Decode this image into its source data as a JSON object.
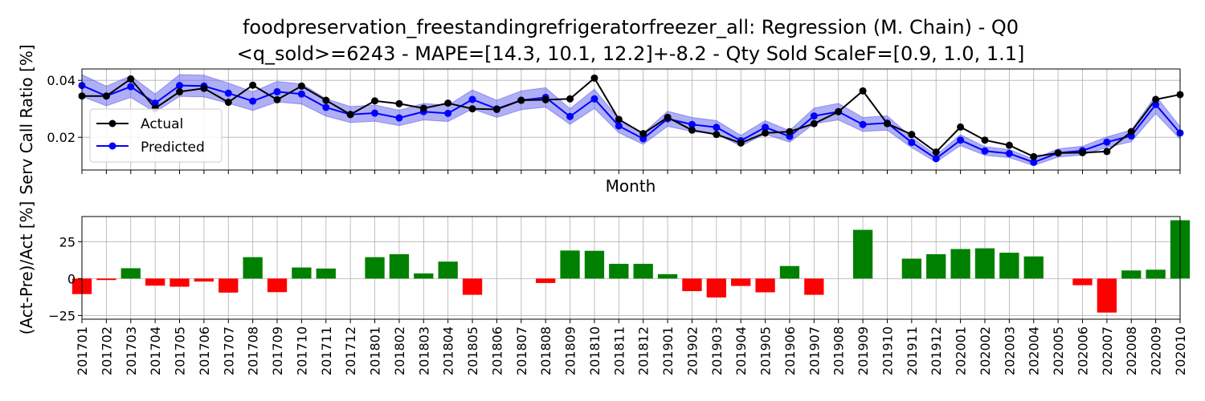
{
  "chart_data": [
    {
      "type": "line",
      "title_line1": "foodpreservation_freestandingrefrigeratorfreezer_all: Regression (M. Chain) - Q0",
      "title_line2": "<q_sold>=6243 - MAPE=[14.3, 10.1, 12.2]+-8.2 - Qty Sold ScaleF=[0.9, 1.0, 1.1]",
      "xlabel": "Month",
      "ylabel": "Serv Call Ratio [%]",
      "ylim": [
        0.0085,
        0.044
      ],
      "yticks": [
        0.02,
        0.04
      ],
      "ytick_labels": [
        "0.02",
        "0.04"
      ],
      "grid": true,
      "legend_placement": "center-left",
      "series": [
        {
          "name": "Actual",
          "color": "#000000",
          "values": [
            0.0345,
            0.0345,
            0.0405,
            0.0302,
            0.036,
            0.0372,
            0.0323,
            0.0383,
            0.0332,
            0.038,
            0.033,
            0.028,
            0.0328,
            0.0318,
            0.0302,
            0.032,
            0.03,
            0.0298,
            0.033,
            0.0332,
            0.0335,
            0.0408,
            0.0263,
            0.0213,
            0.027,
            0.0225,
            0.021,
            0.018,
            0.0215,
            0.022,
            0.0248,
            0.029,
            0.0363,
            0.0248,
            0.021,
            0.0148,
            0.0236,
            0.019,
            0.0172,
            0.0132,
            0.0145,
            0.0146,
            0.015,
            0.022,
            0.0333,
            0.035
          ]
        },
        {
          "name": "Predicted",
          "color": "#0000ff",
          "band_color": "#6060ee",
          "values": [
            0.0382,
            0.0345,
            0.0378,
            0.032,
            0.0382,
            0.038,
            0.0355,
            0.0327,
            0.036,
            0.0352,
            0.0305,
            0.028,
            0.0285,
            0.0268,
            0.029,
            0.0284,
            0.0333,
            0.03,
            0.033,
            0.034,
            0.0273,
            0.0335,
            0.024,
            0.0195,
            0.0265,
            0.0245,
            0.0235,
            0.0188,
            0.0235,
            0.0203,
            0.0275,
            0.029,
            0.0245,
            0.025,
            0.0182,
            0.0125,
            0.019,
            0.0152,
            0.0143,
            0.0112,
            0.0145,
            0.0153,
            0.0183,
            0.0205,
            0.0315,
            0.0215
          ]
        }
      ]
    },
    {
      "type": "bar",
      "ylabel": "(Act-Pre)/Act [%]",
      "ylim": [
        -27.5,
        42
      ],
      "yticks": [
        -25,
        0,
        25
      ],
      "ytick_labels": [
        "−25",
        "0",
        "25"
      ],
      "grid": true,
      "positive_color": "#008000",
      "negative_color": "#ff0000",
      "categories": [
        "201701",
        "201702",
        "201703",
        "201704",
        "201705",
        "201706",
        "201707",
        "201708",
        "201709",
        "201710",
        "201711",
        "201712",
        "201801",
        "201802",
        "201803",
        "201804",
        "201805",
        "201806",
        "201807",
        "201808",
        "201809",
        "201810",
        "201811",
        "201812",
        "201901",
        "201902",
        "201903",
        "201904",
        "201905",
        "201906",
        "201907",
        "201908",
        "201909",
        "201910",
        "201911",
        "201912",
        "202001",
        "202002",
        "202003",
        "202004",
        "202005",
        "202006",
        "202007",
        "202008",
        "202009",
        "202010"
      ],
      "values": [
        -10.5,
        -1.0,
        7.0,
        -4.8,
        -5.5,
        -2.0,
        -9.5,
        14.5,
        -9.2,
        7.5,
        6.8,
        0.0,
        14.5,
        16.5,
        3.5,
        11.5,
        -11.0,
        0.0,
        0.0,
        -3.0,
        19.0,
        18.8,
        10.0,
        10.0,
        3.0,
        -8.5,
        -12.8,
        -5.0,
        -9.3,
        8.5,
        -11.0,
        0.0,
        33.0,
        0.0,
        13.5,
        16.5,
        20.0,
        20.5,
        17.5,
        15.0,
        0.0,
        -4.5,
        -23.0,
        5.5,
        6.0,
        39.5
      ]
    }
  ]
}
